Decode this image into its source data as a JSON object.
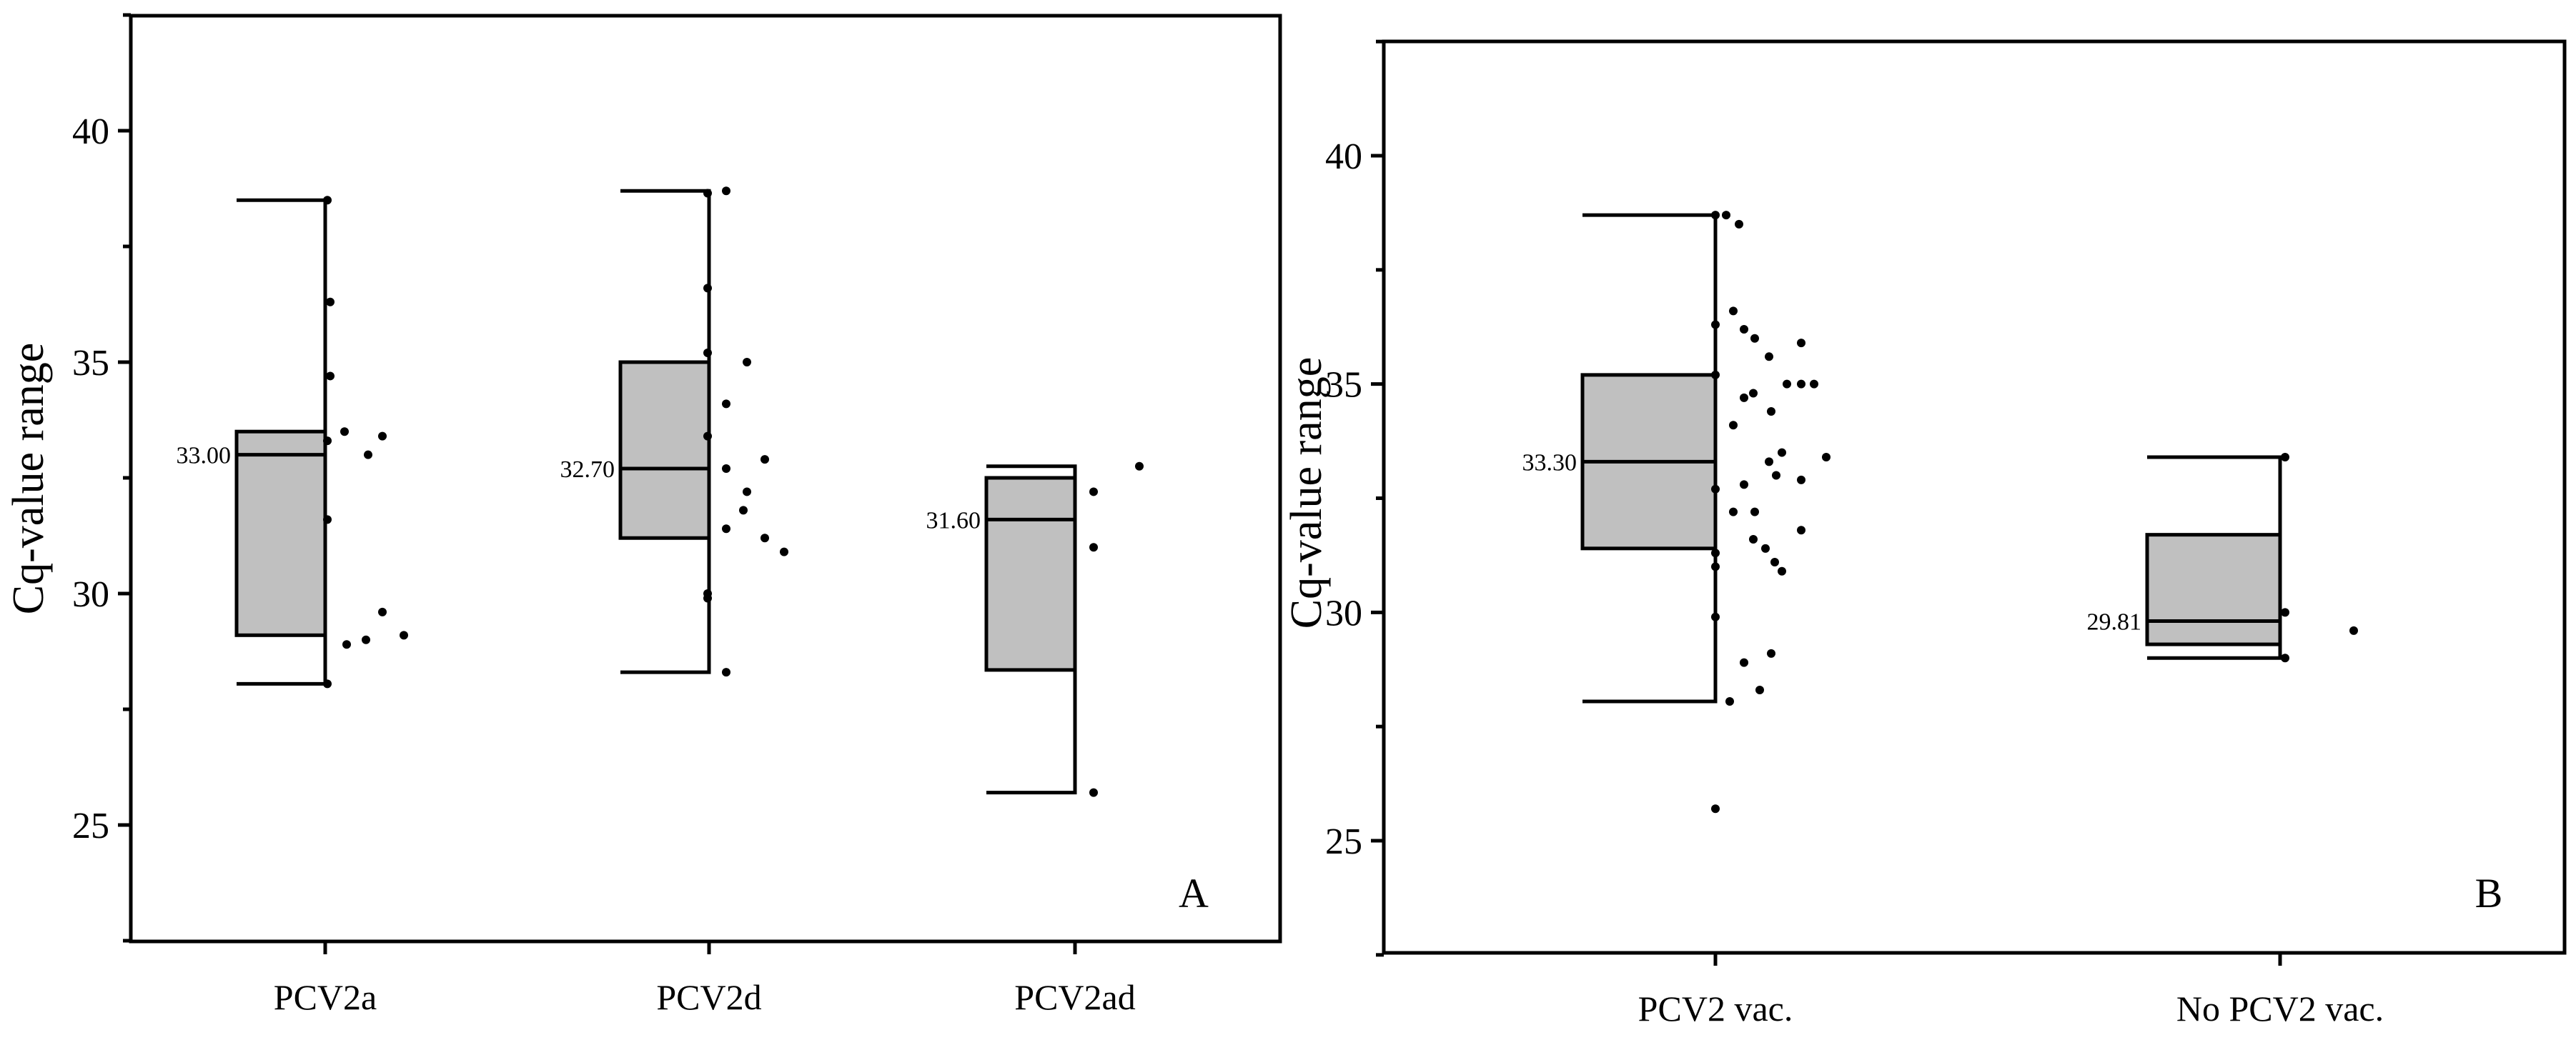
{
  "colors": {
    "box_fill": "#c0c0c0",
    "stroke": "#000000",
    "background": "#ffffff"
  },
  "chart_data": [
    {
      "type": "box",
      "panel_label": "A",
      "ylabel": "Cq-value range",
      "xlabel": "",
      "ylim": [
        22.5,
        42.5
      ],
      "yticks": [
        25,
        30,
        35,
        40
      ],
      "ytick_labels": [
        "25",
        "30",
        "35",
        "40"
      ],
      "grid": false,
      "categories": [
        "PCV2a",
        "PCV2d",
        "PCV2ad"
      ],
      "boxes": [
        {
          "name": "PCV2a",
          "q1": 29.1,
          "median": 33.0,
          "q3": 33.5,
          "whisker_low": 28.05,
          "whisker_high": 38.5,
          "median_label": "33.00",
          "points": [
            38.5,
            36.3,
            34.7,
            33.3,
            33.5,
            33.0,
            33.4,
            31.6,
            28.05,
            28.9,
            29.0,
            29.6,
            29.1
          ]
        },
        {
          "name": "PCV2d",
          "q1": 31.2,
          "median": 32.7,
          "q3": 35.0,
          "whisker_low": 28.3,
          "whisker_high": 38.7,
          "median_label": "32.70",
          "points": [
            38.65,
            38.7,
            36.6,
            35.2,
            35.0,
            34.1,
            33.4,
            32.7,
            32.9,
            32.2,
            31.8,
            31.4,
            31.2,
            30.9,
            30.0,
            29.9,
            28.3
          ]
        },
        {
          "name": "PCV2ad",
          "q1": 28.35,
          "median": 31.6,
          "q3": 32.5,
          "whisker_low": 25.7,
          "whisker_high": 32.75,
          "median_label": "31.60",
          "points": [
            32.75,
            32.2,
            31.0,
            25.7
          ]
        }
      ]
    },
    {
      "type": "box",
      "panel_label": "B",
      "ylabel": "Cq-value range",
      "xlabel": "",
      "ylim": [
        22.5,
        42.5
      ],
      "yticks": [
        25,
        30,
        35,
        40
      ],
      "ytick_labels": [
        "25",
        "30",
        "35",
        "40"
      ],
      "grid": false,
      "categories": [
        "PCV2 vac.",
        "No PCV2 vac."
      ],
      "boxes": [
        {
          "name": "PCV2 vac.",
          "q1": 31.4,
          "median": 33.3,
          "q3": 35.2,
          "whisker_low": 28.05,
          "whisker_high": 38.7,
          "median_label": "33.30",
          "points": [
            38.7,
            38.7,
            38.5,
            36.6,
            36.3,
            36.2,
            36.0,
            35.9,
            35.6,
            35.2,
            35.0,
            35.0,
            35.0,
            34.8,
            34.7,
            34.4,
            34.1,
            33.5,
            33.4,
            33.3,
            33.0,
            32.9,
            32.8,
            32.7,
            32.2,
            32.2,
            31.8,
            31.6,
            31.4,
            31.3,
            31.1,
            31.0,
            30.9,
            29.9,
            29.1,
            28.9,
            28.3,
            28.05,
            25.7
          ]
        },
        {
          "name": "No PCV2 vac.",
          "q1": 29.3,
          "median": 29.81,
          "q3": 31.7,
          "whisker_low": 29.0,
          "whisker_high": 33.4,
          "median_label": "29.81",
          "points": [
            33.4,
            30.0,
            29.0,
            29.6
          ]
        }
      ]
    }
  ]
}
